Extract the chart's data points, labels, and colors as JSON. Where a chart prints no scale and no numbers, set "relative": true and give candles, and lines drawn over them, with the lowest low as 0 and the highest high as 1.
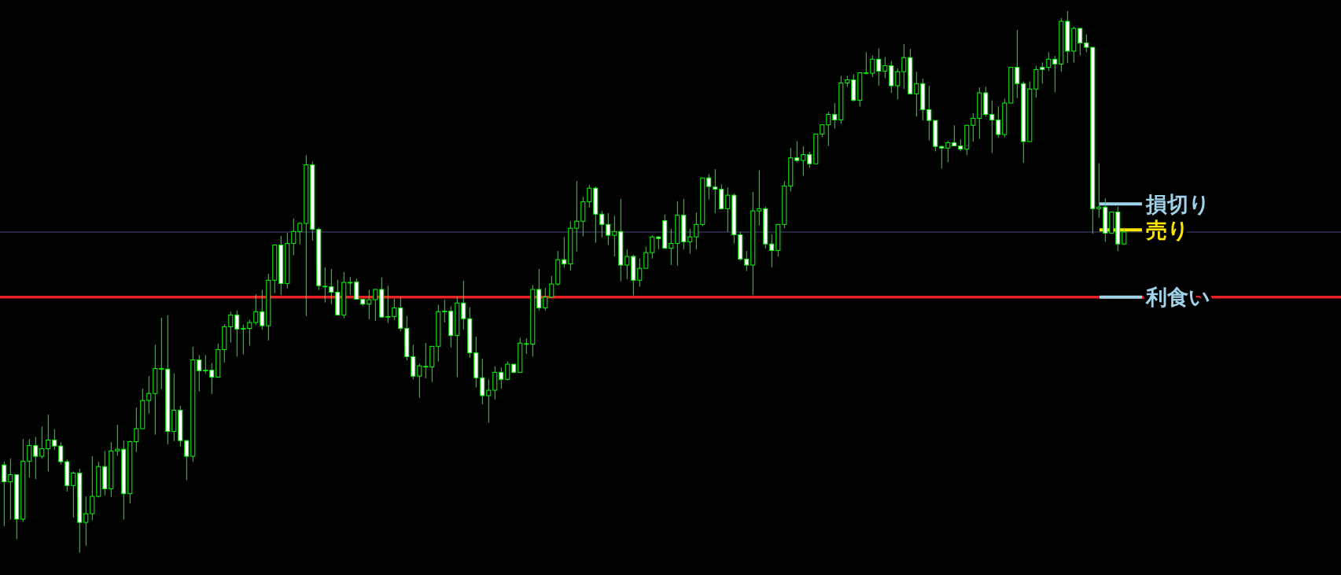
{
  "chart_data": {
    "type": "candlestick",
    "relative": true,
    "color": "#00ff00",
    "categories": [
      null,
      null,
      null,
      null,
      null,
      null,
      null,
      null,
      null,
      null,
      null,
      null,
      null,
      null,
      null,
      null,
      null,
      null,
      null,
      null,
      null,
      null,
      null,
      null,
      null,
      null,
      null,
      null,
      null,
      null,
      null,
      null,
      null,
      null,
      null,
      null,
      null,
      null,
      null,
      null,
      null,
      null,
      null,
      null,
      null,
      null,
      null,
      null,
      null,
      null,
      null,
      null,
      null,
      null,
      null,
      null,
      null,
      null,
      null,
      null,
      null,
      null,
      null,
      null,
      null,
      null,
      null,
      null,
      null,
      null,
      null,
      null,
      null,
      null,
      null,
      null,
      null,
      null,
      null,
      null,
      null,
      null,
      null,
      null,
      null,
      null,
      null,
      null,
      null,
      null,
      null,
      null,
      null,
      null,
      null,
      null,
      null,
      null,
      null,
      null,
      null,
      null,
      null,
      null,
      null,
      null,
      null,
      null,
      null,
      null,
      null,
      null,
      null,
      null,
      null,
      null,
      null,
      null,
      null,
      null,
      null,
      null,
      null,
      null,
      null,
      null,
      null,
      null,
      null,
      null,
      null,
      null,
      null,
      null,
      null,
      null,
      null,
      null,
      null,
      null,
      null,
      null,
      null,
      null,
      null,
      null,
      null,
      null,
      null,
      null,
      null,
      null,
      null,
      null,
      null,
      null,
      null,
      null,
      null,
      null,
      null,
      null,
      null,
      null,
      null,
      null,
      null,
      null,
      null,
      null,
      null,
      null,
      null,
      null,
      null,
      null,
      null,
      null,
      null
    ],
    "ohlc": [
      [
        0.162,
        0.168,
        0.049,
        0.131
      ],
      [
        0.131,
        0.174,
        0.061,
        0.144
      ],
      [
        0.144,
        0.144,
        0.025,
        0.062
      ],
      [
        0.062,
        0.21,
        0.057,
        0.169
      ],
      [
        0.169,
        0.21,
        0.139,
        0.198
      ],
      [
        0.198,
        0.214,
        0.136,
        0.178
      ],
      [
        0.178,
        0.233,
        0.174,
        0.192
      ],
      [
        0.192,
        0.255,
        0.15,
        0.208
      ],
      [
        0.208,
        0.228,
        0.19,
        0.197
      ],
      [
        0.197,
        0.204,
        0.163,
        0.168
      ],
      [
        0.168,
        0.172,
        0.113,
        0.124
      ],
      [
        0.124,
        0.15,
        0.065,
        0.147
      ],
      [
        0.147,
        0.155,
        0,
        0.056
      ],
      [
        0.056,
        0.104,
        0.013,
        0.072
      ],
      [
        0.072,
        0.178,
        0.06,
        0.104
      ],
      [
        0.104,
        0.168,
        0.102,
        0.159
      ],
      [
        0.159,
        0.188,
        0.106,
        0.118
      ],
      [
        0.118,
        0.204,
        0.103,
        0.188
      ],
      [
        0.188,
        0.236,
        0.179,
        0.191
      ],
      [
        0.191,
        0.207,
        0.061,
        0.109
      ],
      [
        0.109,
        0.207,
        0.091,
        0.205
      ],
      [
        0.205,
        0.268,
        0.186,
        0.229
      ],
      [
        0.229,
        0.303,
        0.229,
        0.281
      ],
      [
        0.281,
        0.326,
        0.257,
        0.294
      ],
      [
        0.294,
        0.384,
        0.218,
        0.34
      ],
      [
        0.34,
        0.434,
        0.302,
        0.34
      ],
      [
        0.339,
        0.438,
        0.2,
        0.224
      ],
      [
        0.224,
        0.331,
        0.206,
        0.263
      ],
      [
        0.263,
        0.271,
        0.196,
        0.207
      ],
      [
        0.207,
        0.207,
        0.134,
        0.178
      ],
      [
        0.178,
        0.38,
        0.168,
        0.356
      ],
      [
        0.356,
        0.365,
        0.298,
        0.336
      ],
      [
        0.337,
        0.365,
        0.331,
        0.337
      ],
      [
        0.337,
        0.35,
        0.293,
        0.324
      ],
      [
        0.324,
        0.386,
        0.324,
        0.375
      ],
      [
        0.375,
        0.422,
        0.351,
        0.417
      ],
      [
        0.417,
        0.445,
        0.388,
        0.439
      ],
      [
        0.439,
        0.447,
        0.362,
        0.413
      ],
      [
        0.414,
        0.421,
        0.366,
        0.414
      ],
      [
        0.414,
        0.43,
        0.382,
        0.425
      ],
      [
        0.425,
        0.477,
        0.42,
        0.445
      ],
      [
        0.445,
        0.485,
        0.412,
        0.419
      ],
      [
        0.419,
        0.515,
        0.392,
        0.503
      ],
      [
        0.503,
        0.568,
        0.479,
        0.568
      ],
      [
        0.568,
        0.585,
        0.476,
        0.497
      ],
      [
        0.497,
        0.591,
        0.488,
        0.571
      ],
      [
        0.571,
        0.617,
        0.549,
        0.593
      ],
      [
        0.593,
        0.61,
        0.569,
        0.608
      ],
      [
        0.608,
        0.734,
        0.437,
        0.716
      ],
      [
        0.716,
        0.722,
        0.576,
        0.597
      ],
      [
        0.597,
        0.6,
        0.485,
        0.493
      ],
      [
        0.492,
        0.527,
        0.462,
        0.492
      ],
      [
        0.491,
        0.524,
        0.459,
        0.481
      ],
      [
        0.481,
        0.504,
        0.439,
        0.439
      ],
      [
        0.439,
        0.518,
        0.433,
        0.499
      ],
      [
        0.499,
        0.509,
        0.476,
        0.499
      ],
      [
        0.5,
        0.506,
        0.467,
        0.468
      ],
      [
        0.468,
        0.468,
        0.456,
        0.459
      ],
      [
        0.459,
        0.485,
        0.431,
        0.467
      ],
      [
        0.467,
        0.487,
        0.428,
        0.486
      ],
      [
        0.486,
        0.508,
        0.433,
        0.435
      ],
      [
        0.436,
        0.493,
        0.424,
        0.436
      ],
      [
        0.436,
        0.469,
        0.43,
        0.452
      ],
      [
        0.452,
        0.473,
        0.409,
        0.414
      ],
      [
        0.414,
        0.437,
        0.355,
        0.362
      ],
      [
        0.362,
        0.384,
        0.32,
        0.326
      ],
      [
        0.326,
        0.349,
        0.286,
        0.345
      ],
      [
        0.344,
        0.387,
        0.322,
        0.344
      ],
      [
        0.343,
        0.381,
        0.315,
        0.381
      ],
      [
        0.381,
        0.458,
        0.353,
        0.445
      ],
      [
        0.446,
        0.467,
        0.425,
        0.446
      ],
      [
        0.446,
        0.455,
        0.379,
        0.401
      ],
      [
        0.401,
        0.473,
        0.324,
        0.461
      ],
      [
        0.461,
        0.502,
        0.412,
        0.432
      ],
      [
        0.432,
        0.453,
        0.36,
        0.369
      ],
      [
        0.369,
        0.399,
        0.305,
        0.323
      ],
      [
        0.323,
        0.358,
        0.274,
        0.29
      ],
      [
        0.29,
        0.32,
        0.24,
        0.3
      ],
      [
        0.3,
        0.344,
        0.283,
        0.333
      ],
      [
        0.333,
        0.342,
        0.303,
        0.32
      ],
      [
        0.32,
        0.353,
        0.318,
        0.348
      ],
      [
        0.348,
        0.348,
        0.331,
        0.333
      ],
      [
        0.333,
        0.397,
        0.333,
        0.387
      ],
      [
        0.386,
        0.396,
        0.367,
        0.386
      ],
      [
        0.385,
        0.494,
        0.362,
        0.486
      ],
      [
        0.486,
        0.524,
        0.447,
        0.452
      ],
      [
        0.452,
        0.489,
        0.447,
        0.472
      ],
      [
        0.472,
        0.511,
        0.472,
        0.496
      ],
      [
        0.496,
        0.557,
        0.493,
        0.541
      ],
      [
        0.541,
        0.583,
        0.526,
        0.533
      ],
      [
        0.533,
        0.612,
        0.521,
        0.599
      ],
      [
        0.599,
        0.686,
        0.556,
        0.612
      ],
      [
        0.612,
        0.657,
        0.584,
        0.648
      ],
      [
        0.648,
        0.679,
        0.637,
        0.673
      ],
      [
        0.673,
        0.676,
        0.572,
        0.625
      ],
      [
        0.625,
        0.631,
        0.582,
        0.606
      ],
      [
        0.606,
        0.627,
        0.568,
        0.586
      ],
      [
        0.586,
        0.622,
        0.547,
        0.593
      ],
      [
        0.593,
        0.653,
        0.501,
        0.531
      ],
      [
        0.531,
        0.56,
        0.505,
        0.547
      ],
      [
        0.547,
        0.55,
        0.475,
        0.503
      ],
      [
        0.503,
        0.543,
        0.491,
        0.525
      ],
      [
        0.525,
        0.565,
        0.525,
        0.554
      ],
      [
        0.554,
        0.586,
        0.543,
        0.583
      ],
      [
        0.583,
        0.584,
        0.56,
        0.58
      ],
      [
        0.613,
        0.624,
        0.562,
        0.562
      ],
      [
        0.562,
        0.598,
        0.531,
        0.571
      ],
      [
        0.571,
        0.649,
        0.53,
        0.623
      ],
      [
        0.623,
        0.653,
        0.56,
        0.574
      ],
      [
        0.574,
        0.598,
        0.552,
        0.583
      ],
      [
        0.583,
        0.628,
        0.56,
        0.606
      ],
      [
        0.606,
        0.692,
        0.603,
        0.692
      ],
      [
        0.692,
        0.699,
        0.652,
        0.676
      ],
      [
        0.675,
        0.708,
        0.627,
        0.671
      ],
      [
        0.671,
        0.68,
        0.633,
        0.635
      ],
      [
        0.635,
        0.674,
        0.592,
        0.66
      ],
      [
        0.66,
        0.663,
        0.571,
        0.587
      ],
      [
        0.587,
        0.592,
        0.539,
        0.542
      ],
      [
        0.542,
        0.557,
        0.52,
        0.531
      ],
      [
        0.531,
        0.666,
        0.476,
        0.631
      ],
      [
        0.631,
        0.706,
        0.604,
        0.635
      ],
      [
        0.635,
        0.639,
        0.562,
        0.57
      ],
      [
        0.57,
        0.588,
        0.527,
        0.558
      ],
      [
        0.558,
        0.606,
        0.547,
        0.606
      ],
      [
        0.606,
        0.686,
        0.599,
        0.677
      ],
      [
        0.677,
        0.747,
        0.667,
        0.729
      ],
      [
        0.729,
        0.76,
        0.721,
        0.724
      ],
      [
        0.724,
        0.75,
        0.696,
        0.735
      ],
      [
        0.735,
        0.74,
        0.711,
        0.718
      ],
      [
        0.718,
        0.773,
        0.718,
        0.773
      ],
      [
        0.773,
        0.79,
        0.767,
        0.79
      ],
      [
        0.79,
        0.814,
        0.751,
        0.809
      ],
      [
        0.809,
        0.83,
        0.783,
        0.799
      ],
      [
        0.799,
        0.88,
        0.792,
        0.867
      ],
      [
        0.867,
        0.88,
        0.86,
        0.873
      ],
      [
        0.873,
        0.883,
        0.833,
        0.835
      ],
      [
        0.835,
        0.886,
        0.824,
        0.886
      ],
      [
        0.886,
        0.924,
        0.883,
        0.886
      ],
      [
        0.885,
        0.918,
        0.878,
        0.911
      ],
      [
        0.911,
        0.931,
        0.862,
        0.889
      ],
      [
        0.889,
        0.915,
        0.876,
        0.899
      ],
      [
        0.899,
        0.908,
        0.849,
        0.862
      ],
      [
        0.862,
        0.894,
        0.837,
        0.888
      ],
      [
        0.888,
        0.939,
        0.856,
        0.914
      ],
      [
        0.914,
        0.93,
        0.846,
        0.847
      ],
      [
        0.847,
        0.888,
        0.805,
        0.866
      ],
      [
        0.866,
        0.875,
        0.798,
        0.818
      ],
      [
        0.818,
        0.862,
        0.761,
        0.798
      ],
      [
        0.798,
        0.798,
        0.741,
        0.75
      ],
      [
        0.75,
        0.751,
        0.709,
        0.747
      ],
      [
        0.747,
        0.76,
        0.721,
        0.757
      ],
      [
        0.757,
        0.789,
        0.751,
        0.751
      ],
      [
        0.751,
        0.763,
        0.741,
        0.745
      ],
      [
        0.745,
        0.79,
        0.734,
        0.789
      ],
      [
        0.789,
        0.811,
        0.759,
        0.802
      ],
      [
        0.802,
        0.859,
        0.764,
        0.849
      ],
      [
        0.849,
        0.86,
        0.805,
        0.809
      ],
      [
        0.809,
        0.835,
        0.738,
        0.799
      ],
      [
        0.799,
        0.824,
        0.766,
        0.772
      ],
      [
        0.772,
        0.838,
        0.767,
        0.83
      ],
      [
        0.83,
        0.896,
        0.83,
        0.896
      ],
      [
        0.896,
        0.965,
        0.839,
        0.866
      ],
      [
        0.866,
        0.87,
        0.72,
        0.759
      ],
      [
        0.759,
        0.87,
        0.759,
        0.856
      ],
      [
        0.856,
        0.899,
        0.84,
        0.892
      ],
      [
        0.896,
        0.905,
        0.866,
        0.892
      ],
      [
        0.896,
        0.924,
        0.889,
        0.911
      ],
      [
        0.911,
        0.917,
        0.85,
        0.902
      ],
      [
        0.902,
        0.987,
        0.888,
        0.981
      ],
      [
        0.981,
        1,
        0.904,
        0.926
      ],
      [
        0.926,
        0.971,
        0.905,
        0.968
      ],
      [
        0.968,
        0.968,
        0.918,
        0.941
      ],
      [
        0.941,
        0.957,
        0.924,
        0.933
      ],
      [
        0.933,
        0.933,
        0.589,
        0.635
      ],
      [
        0.635,
        0.719,
        0.618,
        0.638
      ],
      [
        0.638,
        0.654,
        0.574,
        0.59
      ],
      [
        0.59,
        0.629,
        0.59,
        0.629
      ],
      [
        0.629,
        0.639,
        0.557,
        0.57
      ],
      [
        0.57,
        0.6,
        0.568,
        0.592
      ]
    ],
    "ref_lines": [
      {
        "axis": "y",
        "value": 0.592,
        "color": "#4b4b80"
      },
      {
        "axis": "y",
        "value": 0.472,
        "color": "#e8202a"
      },
      {
        "axis": "y",
        "value": 0.644,
        "label": "損切り",
        "color": "#9fd3ea"
      },
      {
        "axis": "y",
        "value": 0.596,
        "label": "売り",
        "color": "#ffe600"
      },
      {
        "axis": "y",
        "value": 0.472,
        "label": "利食い",
        "color": "#9fd3ea"
      }
    ]
  }
}
